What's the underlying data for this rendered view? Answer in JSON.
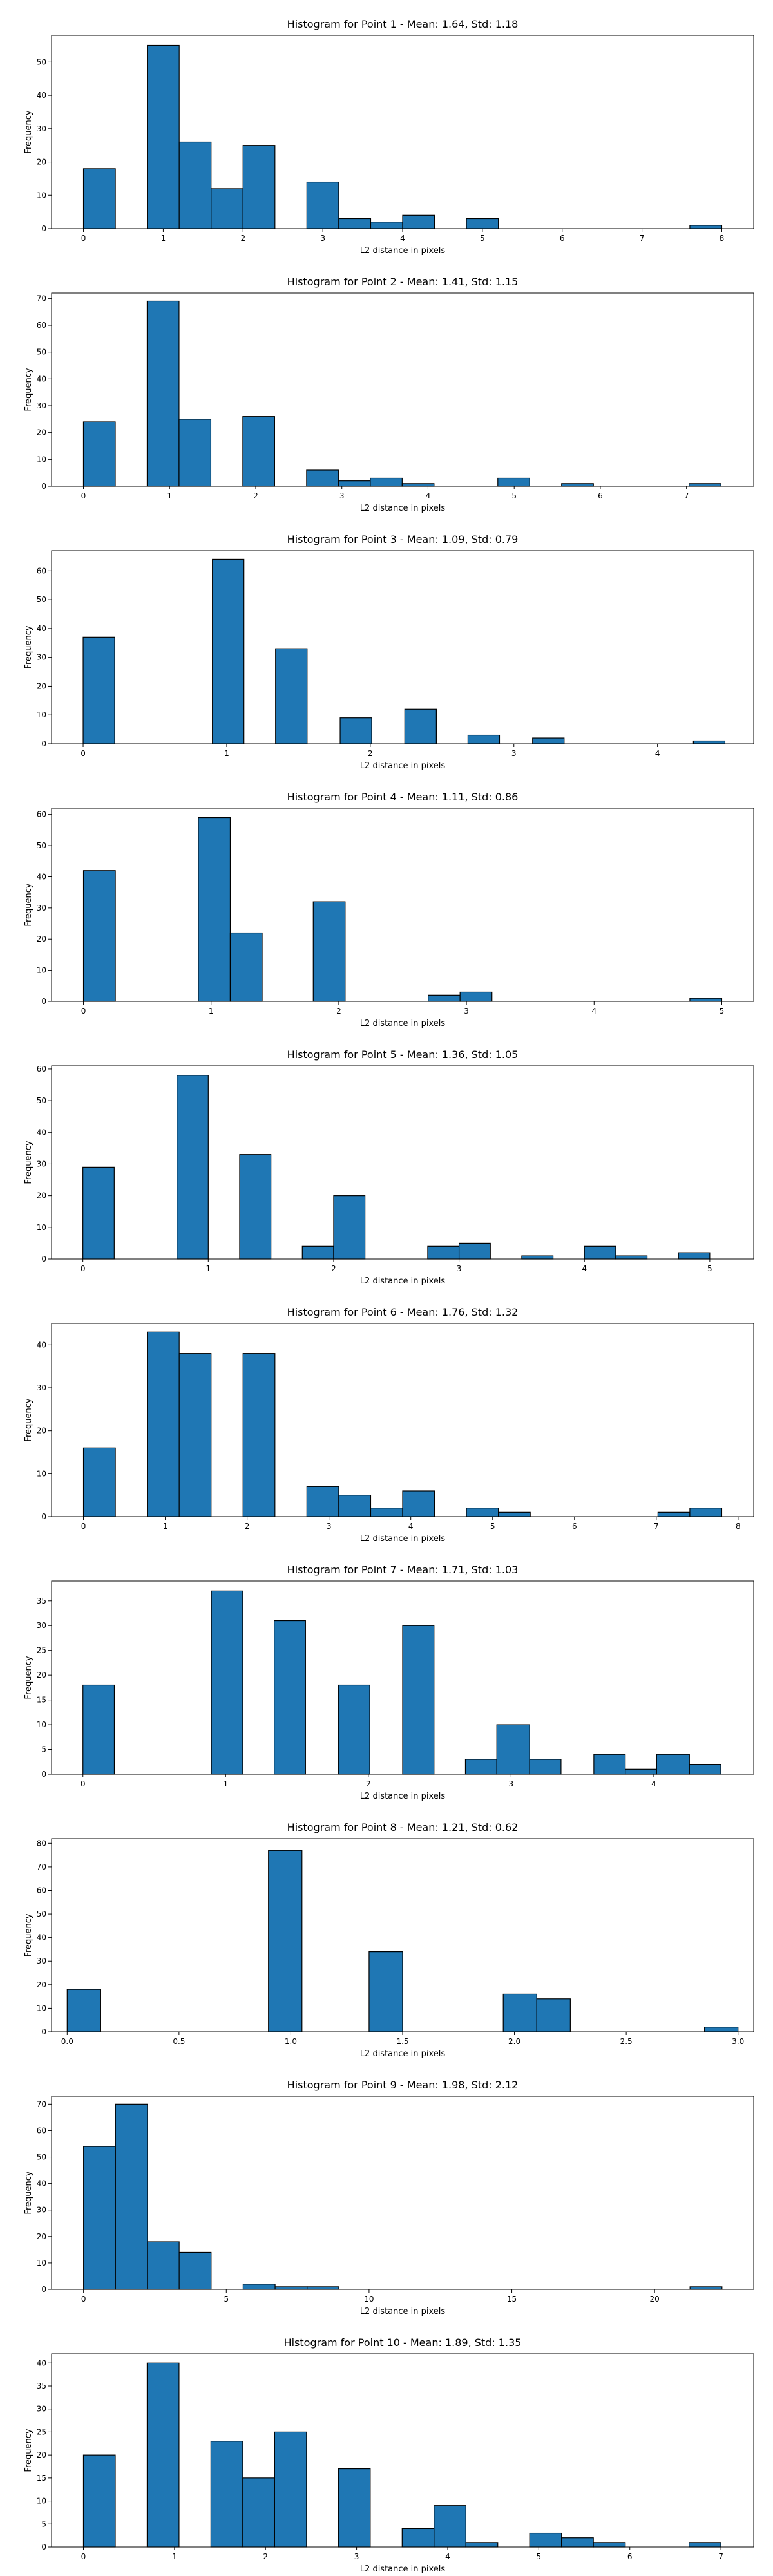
{
  "colors": {
    "bar": "#1f77b4",
    "edge": "#000000",
    "background": "#ffffff"
  },
  "chart_data": [
    {
      "type": "bar",
      "title": "Histogram for Point 1 - Mean: 1.64, Std: 1.18",
      "xlabel": "L2 distance in pixels",
      "ylabel": "Frequency",
      "xlim": [
        -0.4,
        8.4
      ],
      "ylim": [
        0,
        58
      ],
      "xticks": [
        0,
        1,
        2,
        3,
        4,
        5,
        6,
        7,
        8
      ],
      "yticks": [
        0,
        10,
        20,
        30,
        40,
        50
      ],
      "bins": [
        [
          0,
          0.4,
          18
        ],
        [
          0.8,
          1.2,
          55
        ],
        [
          1.2,
          1.6,
          26
        ],
        [
          1.6,
          2.0,
          12
        ],
        [
          2.0,
          2.4,
          25
        ],
        [
          2.8,
          3.2,
          14
        ],
        [
          3.2,
          3.6,
          3
        ],
        [
          3.6,
          4.0,
          2
        ],
        [
          4.0,
          4.4,
          4
        ],
        [
          4.8,
          5.2,
          3
        ],
        [
          7.6,
          8.0,
          1
        ]
      ]
    },
    {
      "type": "bar",
      "title": "Histogram for Point 2 - Mean: 1.41, Std: 1.15",
      "xlabel": "L2 distance in pixels",
      "ylabel": "Frequency",
      "xlim": [
        -0.37,
        7.78
      ],
      "ylim": [
        0,
        72
      ],
      "xticks": [
        0,
        1,
        2,
        3,
        4,
        5,
        6,
        7
      ],
      "yticks": [
        0,
        10,
        20,
        30,
        40,
        50,
        60,
        70
      ],
      "bins": [
        [
          0,
          0.37,
          24
        ],
        [
          0.74,
          1.11,
          69
        ],
        [
          1.11,
          1.48,
          25
        ],
        [
          1.85,
          2.22,
          26
        ],
        [
          2.59,
          2.96,
          6
        ],
        [
          2.96,
          3.33,
          2
        ],
        [
          3.33,
          3.7,
          3
        ],
        [
          3.7,
          4.07,
          1
        ],
        [
          4.81,
          5.18,
          3
        ],
        [
          5.55,
          5.92,
          1
        ],
        [
          7.03,
          7.4,
          1
        ]
      ]
    },
    {
      "type": "bar",
      "title": "Histogram for Point 3 - Mean: 1.09, Std: 0.79",
      "xlabel": "L2 distance in pixels",
      "ylabel": "Frequency",
      "xlim": [
        -0.22,
        4.67
      ],
      "ylim": [
        0,
        67
      ],
      "xticks": [
        0,
        1,
        2,
        3,
        4
      ],
      "yticks": [
        0,
        10,
        20,
        30,
        40,
        50,
        60
      ],
      "bins": [
        [
          0,
          0.22,
          37
        ],
        [
          0.9,
          1.12,
          64
        ],
        [
          1.34,
          1.56,
          33
        ],
        [
          1.79,
          2.01,
          9
        ],
        [
          2.24,
          2.46,
          12
        ],
        [
          2.68,
          2.9,
          3
        ],
        [
          3.13,
          3.35,
          2
        ],
        [
          4.25,
          4.47,
          1
        ]
      ]
    },
    {
      "type": "bar",
      "title": "Histogram for Point 4 - Mean: 1.11, Std: 0.86",
      "xlabel": "L2 distance in pixels",
      "ylabel": "Frequency",
      "xlim": [
        -0.25,
        5.25
      ],
      "ylim": [
        0,
        62
      ],
      "xticks": [
        0,
        1,
        2,
        3,
        4,
        5
      ],
      "yticks": [
        0,
        10,
        20,
        30,
        40,
        50,
        60
      ],
      "bins": [
        [
          0,
          0.25,
          42
        ],
        [
          0.9,
          1.15,
          59
        ],
        [
          1.15,
          1.4,
          22
        ],
        [
          1.8,
          2.05,
          32
        ],
        [
          2.7,
          2.95,
          2
        ],
        [
          2.95,
          3.2,
          3
        ],
        [
          4.75,
          5.0,
          1
        ]
      ]
    },
    {
      "type": "bar",
      "title": "Histogram for Point 5 - Mean: 1.36, Std: 1.05",
      "xlabel": "L2 distance in pixels",
      "ylabel": "Frequency",
      "xlim": [
        -0.25,
        5.35
      ],
      "ylim": [
        0,
        61
      ],
      "xticks": [
        0,
        1,
        2,
        3,
        4,
        5
      ],
      "yticks": [
        0,
        10,
        20,
        30,
        40,
        50,
        60
      ],
      "bins": [
        [
          0,
          0.25,
          29
        ],
        [
          0.75,
          1.0,
          58
        ],
        [
          1.25,
          1.5,
          33
        ],
        [
          1.75,
          2.0,
          4
        ],
        [
          2.0,
          2.25,
          20
        ],
        [
          2.75,
          3.0,
          4
        ],
        [
          3.0,
          3.25,
          5
        ],
        [
          3.5,
          3.75,
          1
        ],
        [
          4.0,
          4.25,
          4
        ],
        [
          4.25,
          4.5,
          1
        ],
        [
          4.75,
          5.0,
          2
        ]
      ]
    },
    {
      "type": "bar",
      "title": "Histogram for Point 6 - Mean: 1.76, Std: 1.32",
      "xlabel": "L2 distance in pixels",
      "ylabel": "Frequency",
      "xlim": [
        -0.39,
        8.19
      ],
      "ylim": [
        0,
        45
      ],
      "xticks": [
        0,
        1,
        2,
        3,
        4,
        5,
        6,
        7,
        8
      ],
      "yticks": [
        0,
        10,
        20,
        30,
        40
      ],
      "bins": [
        [
          0,
          0.39,
          16
        ],
        [
          0.78,
          1.17,
          43
        ],
        [
          1.17,
          1.56,
          38
        ],
        [
          1.95,
          2.34,
          38
        ],
        [
          2.73,
          3.12,
          7
        ],
        [
          3.12,
          3.51,
          5
        ],
        [
          3.51,
          3.9,
          2
        ],
        [
          3.9,
          4.29,
          6
        ],
        [
          4.68,
          5.07,
          2
        ],
        [
          5.07,
          5.46,
          1
        ],
        [
          7.02,
          7.41,
          1
        ],
        [
          7.41,
          7.8,
          2
        ]
      ]
    },
    {
      "type": "bar",
      "title": "Histogram for Point 7 - Mean: 1.71, Std: 1.03",
      "xlabel": "L2 distance in pixels",
      "ylabel": "Frequency",
      "xlim": [
        -0.22,
        4.7
      ],
      "ylim": [
        0,
        39
      ],
      "xticks": [
        0,
        1,
        2,
        3,
        4
      ],
      "yticks": [
        0,
        5,
        10,
        15,
        20,
        25,
        30,
        35
      ],
      "bins": [
        [
          0,
          0.22,
          18
        ],
        [
          0.9,
          1.12,
          37
        ],
        [
          1.34,
          1.56,
          31
        ],
        [
          1.79,
          2.01,
          18
        ],
        [
          2.24,
          2.46,
          30
        ],
        [
          2.68,
          2.9,
          3
        ],
        [
          2.9,
          3.13,
          10
        ],
        [
          3.13,
          3.35,
          3
        ],
        [
          3.58,
          3.8,
          4
        ],
        [
          3.8,
          4.02,
          1
        ],
        [
          4.02,
          4.25,
          4
        ],
        [
          4.25,
          4.47,
          2
        ]
      ]
    },
    {
      "type": "bar",
      "title": "Histogram for Point 8 - Mean: 1.21, Std: 0.62",
      "xlabel": "L2 distance in pixels",
      "ylabel": "Frequency",
      "xlim": [
        -0.07,
        3.07
      ],
      "ylim": [
        0,
        82
      ],
      "xticks": [
        "0.0",
        "0.5",
        "1.0",
        "1.5",
        "2.0",
        "2.5",
        "3.0"
      ],
      "yticks": [
        0,
        10,
        20,
        30,
        40,
        50,
        60,
        70,
        80
      ],
      "bins": [
        [
          0,
          0.15,
          18
        ],
        [
          0.9,
          1.05,
          77
        ],
        [
          1.35,
          1.5,
          34
        ],
        [
          1.95,
          2.1,
          16
        ],
        [
          2.1,
          2.25,
          14
        ],
        [
          2.85,
          3.0,
          2
        ]
      ]
    },
    {
      "type": "bar",
      "title": "Histogram for Point 9 - Mean: 1.98, Std: 2.12",
      "xlabel": "L2 distance in pixels",
      "ylabel": "Frequency",
      "xlim": [
        -1.12,
        23.47
      ],
      "ylim": [
        0,
        73
      ],
      "xticks": [
        0,
        5,
        10,
        15,
        20
      ],
      "yticks": [
        0,
        10,
        20,
        30,
        40,
        50,
        60,
        70
      ],
      "bins": [
        [
          0,
          1.12,
          54
        ],
        [
          1.12,
          2.24,
          70
        ],
        [
          2.24,
          3.35,
          18
        ],
        [
          3.35,
          4.47,
          14
        ],
        [
          5.59,
          6.71,
          2
        ],
        [
          6.71,
          7.83,
          1
        ],
        [
          7.83,
          8.94,
          1
        ],
        [
          21.24,
          22.36,
          1
        ]
      ]
    },
    {
      "type": "bar",
      "title": "Histogram for Point 10 - Mean: 1.89, Std: 1.35",
      "xlabel": "L2 distance in pixels",
      "ylabel": "Frequency",
      "xlim": [
        -0.35,
        7.36
      ],
      "ylim": [
        0,
        42
      ],
      "xticks": [
        0,
        1,
        2,
        3,
        4,
        5,
        6,
        7
      ],
      "yticks": [
        0,
        5,
        10,
        15,
        20,
        25,
        30,
        35,
        40
      ],
      "bins": [
        [
          0,
          0.35,
          20
        ],
        [
          0.7,
          1.05,
          40
        ],
        [
          1.4,
          1.75,
          23
        ],
        [
          1.75,
          2.1,
          15
        ],
        [
          2.1,
          2.45,
          25
        ],
        [
          2.8,
          3.15,
          17
        ],
        [
          3.5,
          3.85,
          4
        ],
        [
          3.85,
          4.2,
          9
        ],
        [
          4.2,
          4.55,
          1
        ],
        [
          4.9,
          5.25,
          3
        ],
        [
          5.25,
          5.6,
          2
        ],
        [
          5.6,
          5.95,
          1
        ],
        [
          6.65,
          7.0,
          1
        ]
      ]
    }
  ]
}
